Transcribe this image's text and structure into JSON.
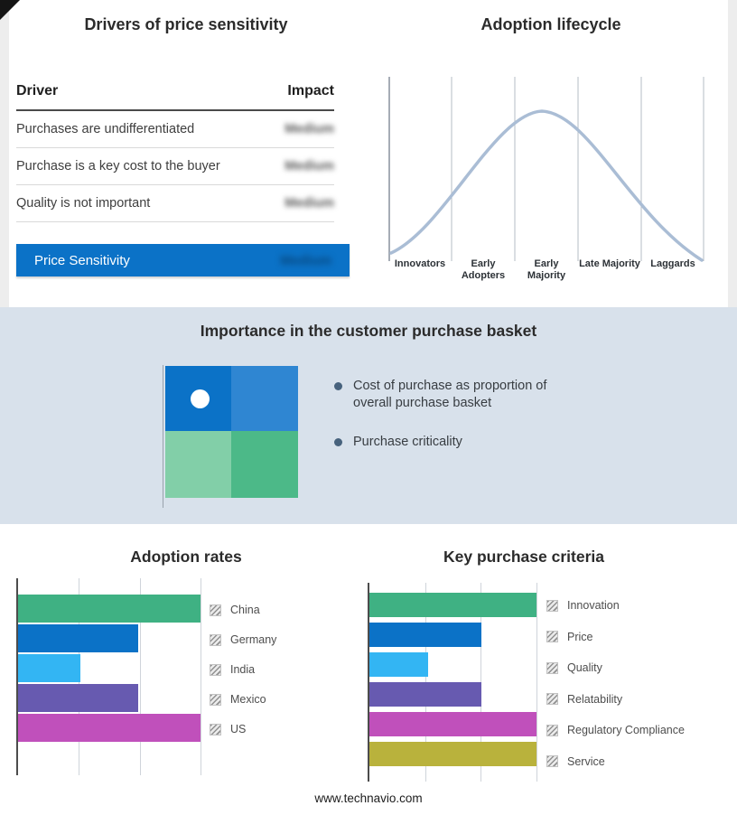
{
  "page": {
    "footer": "www.technavio.com"
  },
  "price_sensitivity": {
    "title": "Drivers of price sensitivity",
    "col_driver": "Driver",
    "col_impact": "Impact",
    "rows": [
      {
        "driver": "Purchases are undifferentiated",
        "impact": "Medium"
      },
      {
        "driver": "Purchase is a key cost to the buyer",
        "impact": "Medium"
      },
      {
        "driver": "Quality is not important",
        "impact": "Medium"
      }
    ],
    "summary": {
      "label": "Price Sensitivity",
      "impact": "Medium"
    },
    "accent_color": "#0b72c7"
  },
  "purchase_basket": {
    "title": "Importance in the customer purchase basket",
    "bullets": [
      "Cost of purchase as proportion of overall purchase basket",
      "Purchase criticality"
    ],
    "quadrant_colors": [
      "#0b72c7",
      "#2f86d2",
      "#82cfa8",
      "#4cb988"
    ],
    "band_color": "#d8e1eb"
  },
  "chart_data": [
    {
      "id": "adoption-lifecycle",
      "type": "line",
      "title": "Adoption lifecycle",
      "categories": [
        "Innovators",
        "Early Adopters",
        "Early Majority",
        "Late Majority",
        "Laggards"
      ],
      "values": [
        0.08,
        0.55,
        1.0,
        0.55,
        0.05
      ],
      "note": "bell-shaped adoption curve peaking at Early Majority",
      "curve_color": "#aabdd5",
      "grid": "vertical-only"
    },
    {
      "id": "adoption-rates",
      "type": "bar",
      "orientation": "horizontal",
      "title": "Adoption rates",
      "categories": [
        "China",
        "Germany",
        "India",
        "Mexico",
        "US"
      ],
      "values": [
        100,
        66,
        34,
        66,
        100
      ],
      "colors": [
        "#3fb183",
        "#0b72c7",
        "#33b5f3",
        "#675ab0",
        "#c050bb"
      ],
      "xlim": [
        0,
        100
      ],
      "grid": "vertical-only",
      "legend_position": "right"
    },
    {
      "id": "key-purchase-criteria",
      "type": "bar",
      "orientation": "horizontal",
      "title": "Key purchase criteria",
      "categories": [
        "Innovation",
        "Price",
        "Quality",
        "Relatability",
        "Regulatory Compliance",
        "Service"
      ],
      "values": [
        100,
        67,
        35,
        67,
        100,
        100
      ],
      "colors": [
        "#3fb183",
        "#0b72c7",
        "#33b5f3",
        "#675ab0",
        "#c050bb",
        "#b9b23c"
      ],
      "xlim": [
        0,
        100
      ],
      "grid": "vertical-only",
      "legend_position": "right"
    }
  ]
}
